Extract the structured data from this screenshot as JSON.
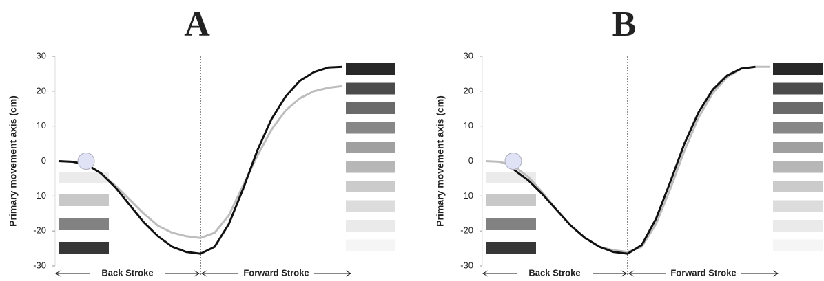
{
  "chart_data": [
    {
      "type": "line",
      "title": "A",
      "y_label": "Primary movement axis (cm)",
      "categories": [
        null,
        null,
        null,
        null,
        null,
        null,
        null,
        null,
        null,
        null,
        null,
        null,
        null,
        null,
        null,
        null,
        null,
        null,
        null,
        null,
        null
      ],
      "series": [
        {
          "color": "#bdbdbd",
          "values": [
            0,
            -0.2,
            -1,
            -3.5,
            -7,
            -11,
            -15,
            -18.5,
            -20.5,
            -21.5,
            -22,
            -20.5,
            -15.5,
            -7,
            1.5,
            9,
            14.5,
            18,
            20,
            21,
            21.5
          ]
        },
        {
          "color": "#111111",
          "values": [
            0,
            -0.2,
            -1,
            -3.5,
            -7.5,
            -12.5,
            -17.5,
            -21.5,
            -24.5,
            -26,
            -26.5,
            -24.5,
            -18,
            -8,
            3,
            12,
            18.5,
            23,
            25.5,
            26.8,
            27
          ]
        }
      ],
      "ylim": [
        -30,
        30
      ],
      "yticks": [
        -30,
        -20,
        -10,
        0,
        10,
        20,
        30
      ],
      "annotations": [
        "Back Stroke",
        "Forward Stroke"
      ]
    },
    {
      "type": "line",
      "title": "B",
      "y_label": "Primary movement axis (cm)",
      "categories": [
        null,
        null,
        null,
        null,
        null,
        null,
        null,
        null,
        null,
        null,
        null,
        null,
        null,
        null,
        null,
        null,
        null,
        null,
        null,
        null,
        null
      ],
      "series": [
        {
          "color": "#bdbdbd",
          "values": [
            0,
            -0.2,
            -1.5,
            -4.5,
            -9,
            -14,
            -18.5,
            -22,
            -24.5,
            -25.5,
            -26,
            -24.5,
            -18,
            -8,
            3,
            12.5,
            19.5,
            24,
            26.5,
            27,
            27
          ]
        },
        {
          "color": "#111111",
          "values": [
            null,
            null,
            -2.5,
            -5.5,
            -9.5,
            -14,
            -18.5,
            -22,
            -24.5,
            -26,
            -26.5,
            -24,
            -16.5,
            -6,
            5,
            14,
            20.5,
            24.5,
            26.5,
            27,
            null
          ]
        }
      ],
      "ylim": [
        -30,
        30
      ],
      "yticks": [
        -30,
        -20,
        -10,
        0,
        10,
        20,
        30
      ],
      "annotations": [
        "Back Stroke",
        "Forward Stroke"
      ]
    }
  ]
}
